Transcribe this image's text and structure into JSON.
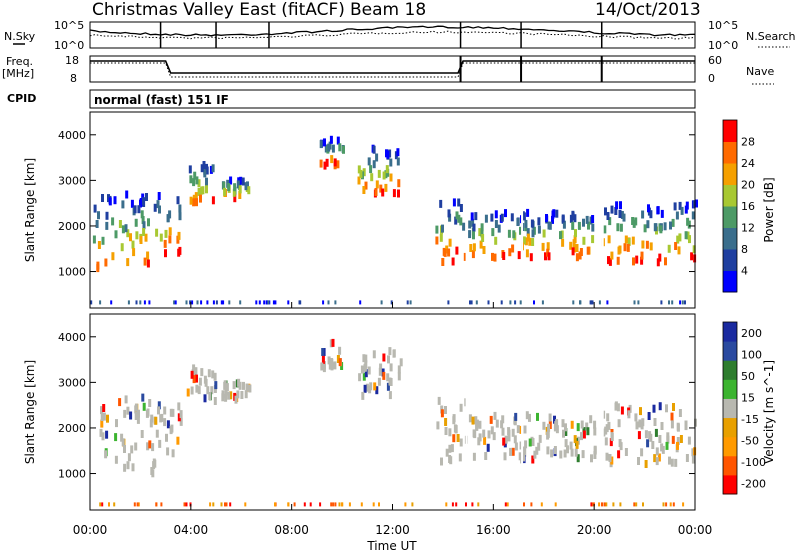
{
  "header": {
    "title": "Christmas Valley East (fitACF)",
    "beam": "Beam 18",
    "date": "14/Oct/2013"
  },
  "noise_panel": {
    "left_label": "N.Sky",
    "left_ticks": [
      "10^5",
      "10^0"
    ],
    "right_ticks": [
      "10^5",
      "10^0"
    ],
    "right_label": "N.Search",
    "right_legend_style": "dotted"
  },
  "freq_panel": {
    "left_label_1": "Freq.",
    "left_label_2": "[MHz]",
    "left_ticks": [
      "18",
      "8"
    ],
    "right_ticks": [
      "60",
      "0"
    ],
    "right_label": "Nave",
    "right_legend_style": "dotted"
  },
  "cpid": {
    "label": "CPID",
    "mode": "normal (fast) 151 IF"
  },
  "colors": {
    "power_scale": [
      "#0000ff",
      "#1f3fa0",
      "#3a6e8c",
      "#4d9a66",
      "#a8c832",
      "#f5a000",
      "#ff6a00",
      "#ff0000"
    ],
    "velocity_scale": [
      "#ff0000",
      "#ff5500",
      "#ff9a00",
      "#e8a000",
      "#b8b8b0",
      "#3cb430",
      "#2e7d2e",
      "#2a4aa0",
      "#1a2aa0"
    ]
  },
  "chart_data": [
    {
      "type": "heatmap",
      "name": "power",
      "xlabel": "",
      "ylabel": "Slant Range [km]",
      "yticks": [
        "1000",
        "2000",
        "3000",
        "4000"
      ],
      "ylim": [
        200,
        4500
      ],
      "xlim_hours": [
        0,
        24
      ],
      "colorbar_label": "Power [dB]",
      "colorbar_ticks": [
        "28",
        "24",
        "20",
        "16",
        "12",
        "8",
        "4"
      ],
      "colorbar_range": [
        0,
        32
      ],
      "echo_bands_ut_hours": [
        {
          "from": 0.1,
          "to": 2.8,
          "range_km": [
            1000,
            2700
          ]
        },
        {
          "from": 2.9,
          "to": 3.6,
          "range_km": [
            1400,
            2600
          ]
        },
        {
          "from": 3.8,
          "to": 5.0,
          "range_km": [
            2400,
            3400
          ]
        },
        {
          "from": 5.2,
          "to": 6.3,
          "range_km": [
            2600,
            3000
          ]
        },
        {
          "from": 9.1,
          "to": 10.0,
          "range_km": [
            3300,
            3900
          ]
        },
        {
          "from": 10.6,
          "to": 12.3,
          "range_km": [
            2700,
            3700
          ]
        },
        {
          "from": 13.7,
          "to": 14.9,
          "range_km": [
            1200,
            2600
          ]
        },
        {
          "from": 15.0,
          "to": 20.0,
          "range_km": [
            1300,
            2300
          ]
        },
        {
          "from": 20.3,
          "to": 24.0,
          "range_km": [
            1200,
            2500
          ]
        }
      ]
    },
    {
      "type": "heatmap",
      "name": "velocity",
      "xlabel": "Time UT",
      "ylabel": "Slant Range [km]",
      "yticks": [
        "1000",
        "2000",
        "3000",
        "4000"
      ],
      "ylim": [
        200,
        4500
      ],
      "xlim_hours": [
        0,
        24
      ],
      "xticks": [
        "00:00",
        "04:00",
        "08:00",
        "12:00",
        "16:00",
        "20:00",
        "00:00"
      ],
      "colorbar_label": "Velocity [m s^-1]",
      "colorbar_ticks": [
        "200",
        "100",
        "50",
        "15",
        "-15",
        "-50",
        "-100",
        "-200"
      ],
      "colorbar_range": [
        -250,
        250
      ]
    }
  ]
}
